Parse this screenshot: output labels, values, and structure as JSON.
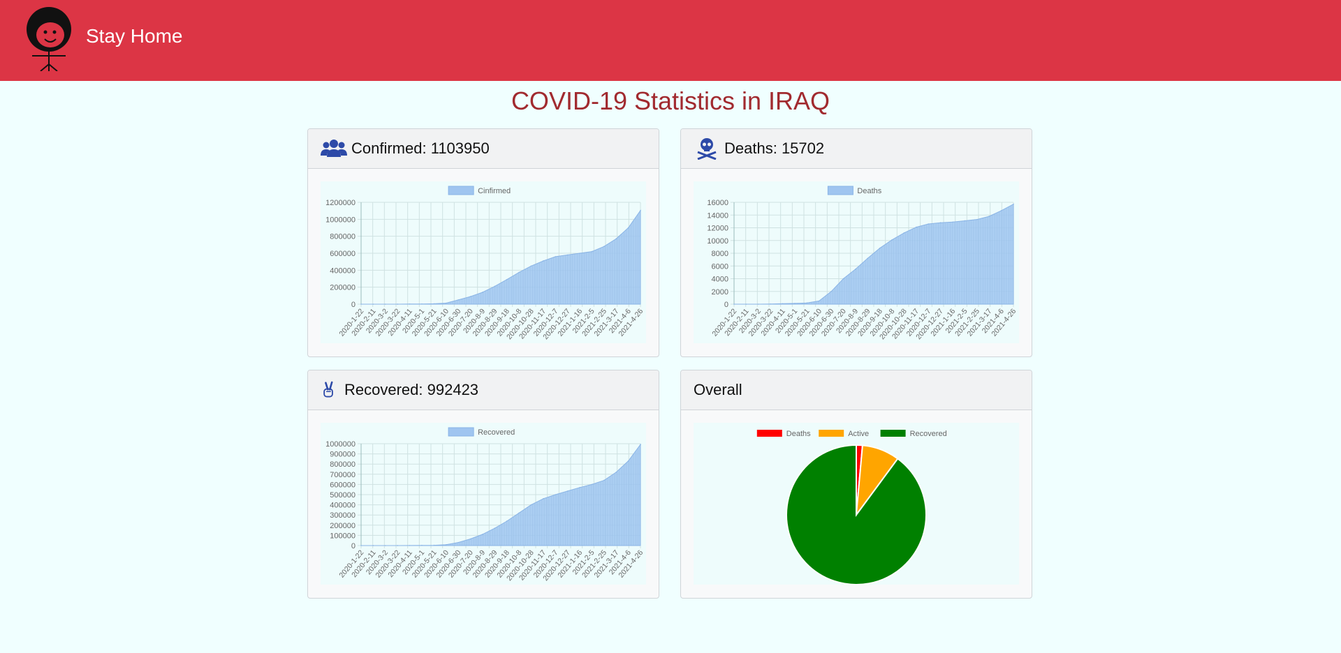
{
  "navbar": {
    "brand": "Stay Home"
  },
  "page": {
    "title": "COVID-19 Statistics in IRAQ"
  },
  "cards": {
    "confirmed": {
      "label": "Confirmed: ",
      "value": "1103950",
      "icon": "users-icon"
    },
    "deaths": {
      "label": "Deaths: ",
      "value": "15702",
      "icon": "skull-crossbones-icon"
    },
    "recovered": {
      "label": "Recovered: ",
      "value": "992423",
      "icon": "peace-hand-icon"
    },
    "overall": {
      "label": "Overall"
    }
  },
  "colors": {
    "navbar": "#dc3545",
    "title": "#a12a2f",
    "area_fill": "#9fc5f0",
    "area_stroke": "#8ab4e6",
    "pie_deaths": "#ff0000",
    "pie_active": "#ffa500",
    "pie_recovered": "#008000",
    "icon": "#2d4aa8"
  },
  "chart_data": [
    {
      "type": "area",
      "title": "",
      "legend": [
        "Cinfirmed"
      ],
      "categories": [
        "2020-1-22",
        "2020-2-11",
        "2020-3-2",
        "2020-3-22",
        "2020-4-11",
        "2020-5-1",
        "2020-5-21",
        "2020-6-10",
        "2020-6-30",
        "2020-7-20",
        "2020-8-9",
        "2020-8-29",
        "2020-9-18",
        "2020-10-8",
        "2020-10-28",
        "2020-11-17",
        "2020-12-7",
        "2020-12-27",
        "2021-1-16",
        "2021-2-5",
        "2021-2-25",
        "2021-3-17",
        "2021-4-6",
        "2021-4-26"
      ],
      "values": [
        0,
        0,
        0,
        300,
        1500,
        2500,
        5000,
        12000,
        50000,
        90000,
        140000,
        210000,
        290000,
        375000,
        450000,
        510000,
        560000,
        580000,
        600000,
        620000,
        680000,
        770000,
        900000,
        1103950
      ],
      "yticks": [
        "0",
        "200000",
        "400000",
        "600000",
        "800000",
        "1000000",
        "1200000"
      ],
      "ylim": [
        0,
        1200000
      ]
    },
    {
      "type": "area",
      "title": "",
      "legend": [
        "Deaths"
      ],
      "categories": [
        "2020-1-22",
        "2020-2-11",
        "2020-3-2",
        "2020-3-22",
        "2020-4-11",
        "2020-5-1",
        "2020-5-21",
        "2020-6-10",
        "2020-6-30",
        "2020-7-20",
        "2020-8-9",
        "2020-8-29",
        "2020-9-18",
        "2020-10-8",
        "2020-10-28",
        "2020-11-17",
        "2020-12-7",
        "2020-12-27",
        "2021-1-16",
        "2021-2-5",
        "2021-2-25",
        "2021-3-17",
        "2021-4-6",
        "2021-4-26"
      ],
      "values": [
        0,
        0,
        0,
        20,
        80,
        120,
        200,
        500,
        2000,
        4000,
        5500,
        7200,
        8800,
        10100,
        11200,
        12100,
        12600,
        12800,
        12900,
        13100,
        13300,
        13800,
        14700,
        15702
      ],
      "yticks": [
        "0",
        "2000",
        "4000",
        "6000",
        "8000",
        "10000",
        "12000",
        "14000",
        "16000"
      ],
      "ylim": [
        0,
        16000
      ]
    },
    {
      "type": "area",
      "title": "",
      "legend": [
        "Recovered"
      ],
      "categories": [
        "2020-1-22",
        "2020-2-11",
        "2020-3-2",
        "2020-3-22",
        "2020-4-11",
        "2020-5-1",
        "2020-5-21",
        "2020-6-10",
        "2020-6-30",
        "2020-7-20",
        "2020-8-9",
        "2020-8-29",
        "2020-9-18",
        "2020-10-8",
        "2020-10-28",
        "2020-11-17",
        "2020-12-7",
        "2020-12-27",
        "2021-1-16",
        "2021-2-5",
        "2021-2-25",
        "2021-3-17",
        "2021-4-6",
        "2021-4-26"
      ],
      "values": [
        0,
        0,
        0,
        100,
        800,
        1800,
        3000,
        8000,
        30000,
        65000,
        110000,
        170000,
        240000,
        320000,
        400000,
        460000,
        500000,
        535000,
        570000,
        600000,
        640000,
        720000,
        830000,
        992423
      ],
      "yticks": [
        "0",
        "100000",
        "200000",
        "300000",
        "400000",
        "500000",
        "600000",
        "700000",
        "800000",
        "900000",
        "1000000"
      ],
      "ylim": [
        0,
        1000000
      ]
    },
    {
      "type": "pie",
      "title": "",
      "labels": [
        "Deaths",
        "Active",
        "Recovered"
      ],
      "values": [
        15702,
        95825,
        992423
      ]
    }
  ]
}
